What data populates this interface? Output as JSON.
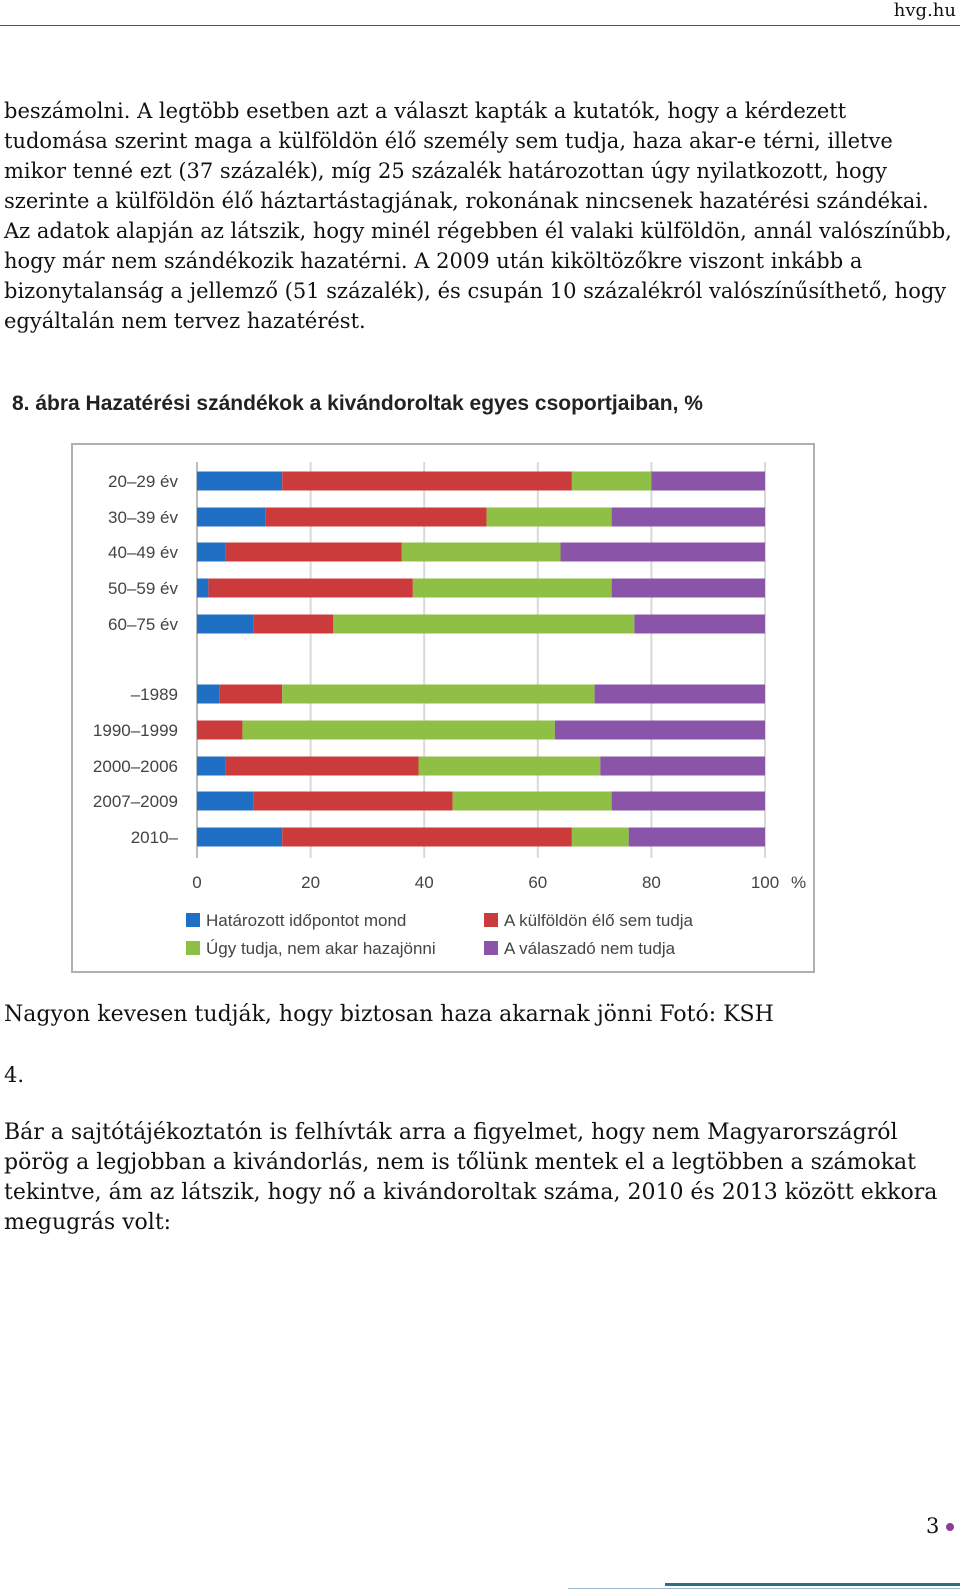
{
  "header": {
    "site": "hvg.hu"
  },
  "paragraph1": "beszámolni. A legtöbb esetben azt a választ kapták a kutatók, hogy a kérdezett tudomása szerint maga a külföldön élő személy sem tudja, haza akar-e térni, illetve mikor tenné ezt (37 százalék), míg 25 százalék határozottan úgy nyilatkozott, hogy szerinte a külföldön élő háztartástagjának, rokonának nincsenek hazatérési szándékai. Az adatok alapján az látszik, hogy minél régebben él valaki külföldön, annál valószínűbb, hogy már nem szándékozik hazatérni. A 2009 után kiköltözőkre viszont inkább a bizonytalanság a jellemző (51 százalék), és csupán 10 százalékról valószínűsíthető, hogy egyáltalán nem tervez hazatérést.",
  "caption": "Nagyon kevesen tudják, hogy biztosan haza akarnak jönni Fotó: KSH",
  "section_number": "4.",
  "paragraph2": "Bár a sajtótájékoztatón is felhívták arra a figyelmet, hogy nem Magyarországról pörög a legjobban a kivándorlás, nem is tőlünk mentek el a legtöbben a számokat tekintve, ám az látszik, hogy nő a kivándoroltak száma, 2010 és 2013 között ekkora megugrás volt:",
  "page_number": "3",
  "chart_data": {
    "type": "bar",
    "orientation": "horizontal",
    "stacked": true,
    "title": "8. ábra Hazatérési szándékok a kivándoroltak egyes csoportjaiban, %",
    "groups": [
      [
        "20–29 év",
        "30–39 év",
        "40–49 év",
        "50–59 év",
        "60–75 év"
      ],
      [
        "–1989",
        "1990–1999",
        "2000–2006",
        "2007–2009",
        "2010–"
      ]
    ],
    "categories": [
      "20–29 év",
      "30–39 év",
      "40–49 év",
      "50–59 év",
      "60–75 év",
      "–1989",
      "1990–1999",
      "2000–2006",
      "2007–2009",
      "2010–"
    ],
    "series": [
      {
        "name": "Határozott időpontot mond",
        "color": "#1f6fc5",
        "values": [
          15,
          12,
          5,
          2,
          10,
          4,
          0,
          5,
          10,
          15
        ]
      },
      {
        "name": "A külföldön élő sem tudja",
        "color": "#cc3b3b",
        "values": [
          51,
          39,
          31,
          36,
          14,
          11,
          8,
          34,
          35,
          51
        ]
      },
      {
        "name": "Úgy tudja, nem akar hazajönni",
        "color": "#8fbf45",
        "values": [
          14,
          22,
          28,
          35,
          53,
          55,
          55,
          32,
          28,
          10
        ]
      },
      {
        "name": "A válaszadó nem tudja",
        "color": "#8a55a8",
        "values": [
          20,
          27,
          36,
          27,
          23,
          30,
          37,
          29,
          27,
          24
        ]
      }
    ],
    "xlim": [
      0,
      100
    ],
    "xticks": [
      "0",
      "20",
      "40",
      "60",
      "80",
      "100"
    ],
    "x_unit": "%",
    "grid": true,
    "legend_position": "bottom"
  }
}
